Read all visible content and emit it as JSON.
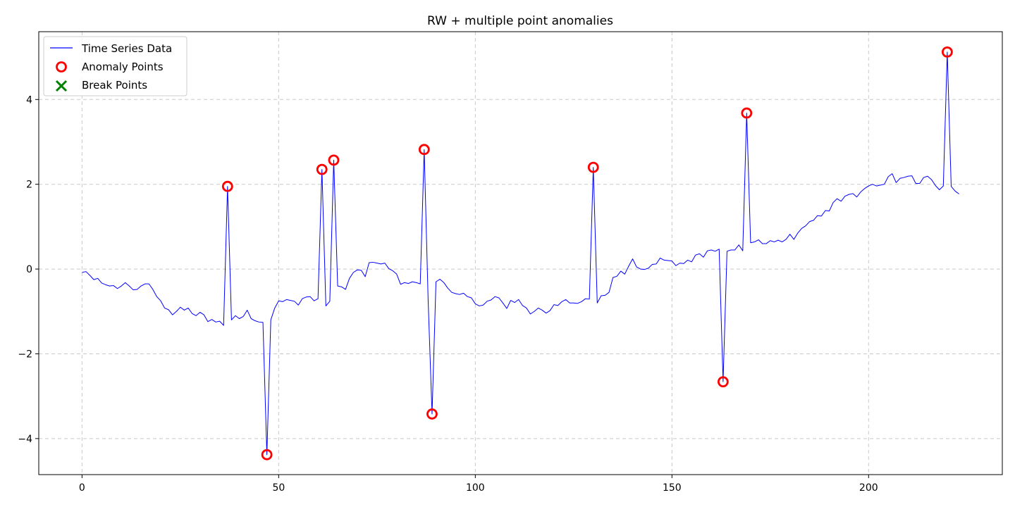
{
  "chart_data": {
    "type": "line",
    "title": "RW + multiple point anomalies",
    "xlabel": "",
    "ylabel": "",
    "xlim": [
      -11,
      234
    ],
    "ylim": [
      -4.85,
      5.6
    ],
    "xticks": [
      0,
      50,
      100,
      150,
      200
    ],
    "yticks": [
      -4,
      -2,
      0,
      2,
      4
    ],
    "grid": true,
    "legend_position": "top-left",
    "colors": {
      "line": "#0000ff",
      "anomaly": "#ff0000",
      "break": "#008000",
      "grid": "#b0b0b0"
    },
    "legend": [
      {
        "label": "Time Series Data",
        "marker": "line",
        "color": "#0000ff"
      },
      {
        "label": "Anomaly Points",
        "marker": "circle",
        "color": "#ff0000"
      },
      {
        "label": "Break Points",
        "marker": "x",
        "color": "#008000"
      }
    ],
    "series": [
      {
        "name": "Time Series Data",
        "values": [
          -0.08,
          -0.06,
          -0.15,
          -0.25,
          -0.22,
          -0.33,
          -0.37,
          -0.4,
          -0.39,
          -0.46,
          -0.4,
          -0.32,
          -0.4,
          -0.49,
          -0.48,
          -0.4,
          -0.35,
          -0.35,
          -0.48,
          -0.65,
          -0.75,
          -0.92,
          -0.96,
          -1.08,
          -1.0,
          -0.9,
          -0.97,
          -0.92,
          -1.05,
          -1.1,
          -1.02,
          -1.08,
          -1.24,
          -1.19,
          -1.25,
          -1.23,
          -1.33,
          1.95,
          -1.2,
          -1.1,
          -1.17,
          -1.12,
          -0.97,
          -1.17,
          -1.22,
          -1.25,
          -1.26,
          -4.38,
          -1.2,
          -0.92,
          -0.75,
          -0.77,
          -0.72,
          -0.74,
          -0.76,
          -0.85,
          -0.7,
          -0.66,
          -0.65,
          -0.75,
          -0.7,
          2.35,
          -0.87,
          -0.76,
          2.57,
          -0.4,
          -0.42,
          -0.48,
          -0.22,
          -0.08,
          -0.02,
          -0.03,
          -0.18,
          0.15,
          0.16,
          0.14,
          0.12,
          0.14,
          0.01,
          -0.04,
          -0.12,
          -0.36,
          -0.32,
          -0.34,
          -0.3,
          -0.32,
          -0.35,
          2.82,
          -0.72,
          -3.42,
          -0.3,
          -0.24,
          -0.32,
          -0.45,
          -0.55,
          -0.58,
          -0.6,
          -0.57,
          -0.65,
          -0.68,
          -0.82,
          -0.87,
          -0.85,
          -0.76,
          -0.73,
          -0.65,
          -0.68,
          -0.8,
          -0.93,
          -0.74,
          -0.79,
          -0.72,
          -0.86,
          -0.92,
          -1.06,
          -1.0,
          -0.92,
          -0.97,
          -1.04,
          -0.98,
          -0.84,
          -0.86,
          -0.77,
          -0.72,
          -0.8,
          -0.8,
          -0.81,
          -0.77,
          -0.7,
          -0.71,
          2.4,
          -0.8,
          -0.63,
          -0.62,
          -0.55,
          -0.2,
          -0.17,
          -0.05,
          -0.12,
          0.07,
          0.24,
          0.05,
          0.0,
          -0.01,
          0.02,
          0.11,
          0.12,
          0.26,
          0.21,
          0.2,
          0.19,
          0.08,
          0.14,
          0.13,
          0.21,
          0.17,
          0.33,
          0.36,
          0.28,
          0.43,
          0.45,
          0.42,
          0.47,
          -2.66,
          0.42,
          0.45,
          0.45,
          0.57,
          0.43,
          3.68,
          0.62,
          0.64,
          0.69,
          0.6,
          0.6,
          0.67,
          0.64,
          0.68,
          0.64,
          0.7,
          0.82,
          0.7,
          0.85,
          0.96,
          1.02,
          1.12,
          1.15,
          1.26,
          1.25,
          1.38,
          1.37,
          1.57,
          1.66,
          1.6,
          1.72,
          1.76,
          1.78,
          1.7,
          1.82,
          1.9,
          1.96,
          2.0,
          1.96,
          1.98,
          2.0,
          2.18,
          2.25,
          2.04,
          2.14,
          2.16,
          2.19,
          2.2,
          2.02,
          2.02,
          2.16,
          2.19,
          2.11,
          1.97,
          1.87,
          1.96,
          5.12,
          1.95,
          1.84,
          1.77
        ]
      }
    ],
    "anomalies": [
      {
        "x": 37,
        "y": 1.95
      },
      {
        "x": 47,
        "y": -4.38
      },
      {
        "x": 61,
        "y": 2.35
      },
      {
        "x": 64,
        "y": 2.57
      },
      {
        "x": 87,
        "y": 2.82
      },
      {
        "x": 89,
        "y": -3.42
      },
      {
        "x": 130,
        "y": 2.4
      },
      {
        "x": 163,
        "y": -2.66
      },
      {
        "x": 169,
        "y": 3.68
      },
      {
        "x": 220,
        "y": 5.12
      }
    ],
    "break_points": []
  }
}
